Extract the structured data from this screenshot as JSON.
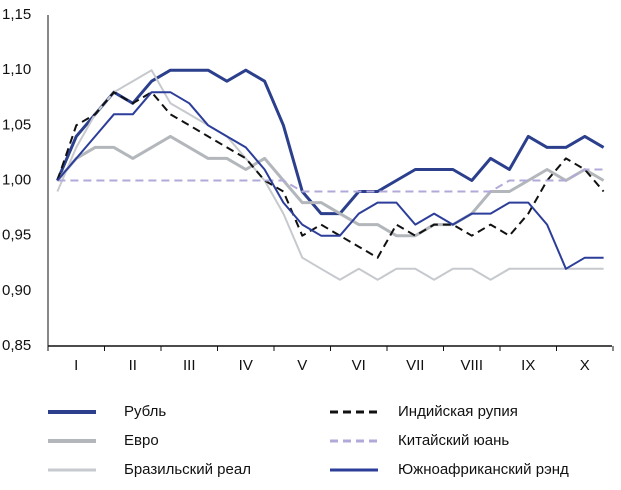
{
  "chart_data": {
    "type": "line",
    "categories": [
      null,
      "I",
      null,
      null,
      "II",
      null,
      null,
      "III",
      null,
      null,
      "IV",
      null,
      null,
      "V",
      null,
      null,
      "VI",
      null,
      null,
      "VII",
      null,
      null,
      "VIII",
      null,
      null,
      "IX",
      null,
      null,
      "X",
      null
    ],
    "ylim": [
      0.85,
      1.15
    ],
    "yticks": [
      {
        "value": 0.85,
        "label": "0,85"
      },
      {
        "value": 0.9,
        "label": "0,90"
      },
      {
        "value": 0.95,
        "label": "0,95"
      },
      {
        "value": 1.0,
        "label": "1,00"
      },
      {
        "value": 1.05,
        "label": "1,05"
      },
      {
        "value": 1.1,
        "label": "1,10"
      },
      {
        "value": 1.15,
        "label": "1,15"
      }
    ],
    "grid": false,
    "series": [
      {
        "name": "Рубль",
        "color": "#2b3f8c",
        "line_width": 3,
        "line_style": "solid",
        "values": [
          1.0,
          1.04,
          1.06,
          1.08,
          1.07,
          1.09,
          1.1,
          1.1,
          1.1,
          1.09,
          1.1,
          1.09,
          1.05,
          0.99,
          0.97,
          0.97,
          0.99,
          0.99,
          1.0,
          1.01,
          1.01,
          1.01,
          1.0,
          1.02,
          1.01,
          1.04,
          1.03,
          1.03,
          1.04,
          1.03
        ]
      },
      {
        "name": "Евро",
        "color": "#b3b7bc",
        "line_width": 3,
        "line_style": "solid",
        "values": [
          1.0,
          1.02,
          1.03,
          1.03,
          1.02,
          1.03,
          1.04,
          1.03,
          1.02,
          1.02,
          1.01,
          1.02,
          1.0,
          0.98,
          0.98,
          0.97,
          0.96,
          0.96,
          0.95,
          0.95,
          0.96,
          0.96,
          0.97,
          0.99,
          0.99,
          1.0,
          1.01,
          1.0,
          1.01,
          1.0
        ]
      },
      {
        "name": "Бразильский реал",
        "color": "#c6c9cd",
        "line_width": 2,
        "line_style": "solid",
        "values": [
          0.99,
          1.03,
          1.06,
          1.08,
          1.09,
          1.1,
          1.07,
          1.06,
          1.05,
          1.04,
          1.02,
          1.0,
          0.97,
          0.93,
          0.92,
          0.91,
          0.92,
          0.91,
          0.92,
          0.92,
          0.91,
          0.92,
          0.92,
          0.91,
          0.92,
          0.92,
          0.92,
          0.92,
          0.92,
          0.92
        ]
      },
      {
        "name": "Индийская рупия",
        "color": "#111111",
        "line_width": 2,
        "line_style": "dashed",
        "values": [
          1.0,
          1.05,
          1.06,
          1.08,
          1.07,
          1.08,
          1.06,
          1.05,
          1.04,
          1.03,
          1.02,
          1.0,
          0.99,
          0.95,
          0.96,
          0.95,
          0.94,
          0.93,
          0.96,
          0.95,
          0.96,
          0.96,
          0.95,
          0.96,
          0.95,
          0.97,
          1.0,
          1.02,
          1.01,
          0.99
        ]
      },
      {
        "name": "Китайский юань",
        "color": "#b0a9d9",
        "line_width": 2,
        "line_style": "dashed",
        "values": [
          1.0,
          1.0,
          1.0,
          1.0,
          1.0,
          1.0,
          1.0,
          1.0,
          1.0,
          1.0,
          1.0,
          1.0,
          1.0,
          0.99,
          0.99,
          0.99,
          0.99,
          0.99,
          0.99,
          0.99,
          0.99,
          0.99,
          0.99,
          0.99,
          1.0,
          1.0,
          1.0,
          1.0,
          1.01,
          1.01
        ]
      },
      {
        "name": "Южноафриканский рэнд",
        "color": "#2c3e9a",
        "line_width": 2,
        "line_style": "solid",
        "values": [
          1.0,
          1.02,
          1.04,
          1.06,
          1.06,
          1.08,
          1.08,
          1.07,
          1.05,
          1.04,
          1.03,
          1.01,
          0.98,
          0.96,
          0.95,
          0.95,
          0.97,
          0.98,
          0.98,
          0.96,
          0.97,
          0.96,
          0.97,
          0.97,
          0.98,
          0.98,
          0.96,
          0.92,
          0.93,
          0.93
        ]
      }
    ]
  }
}
